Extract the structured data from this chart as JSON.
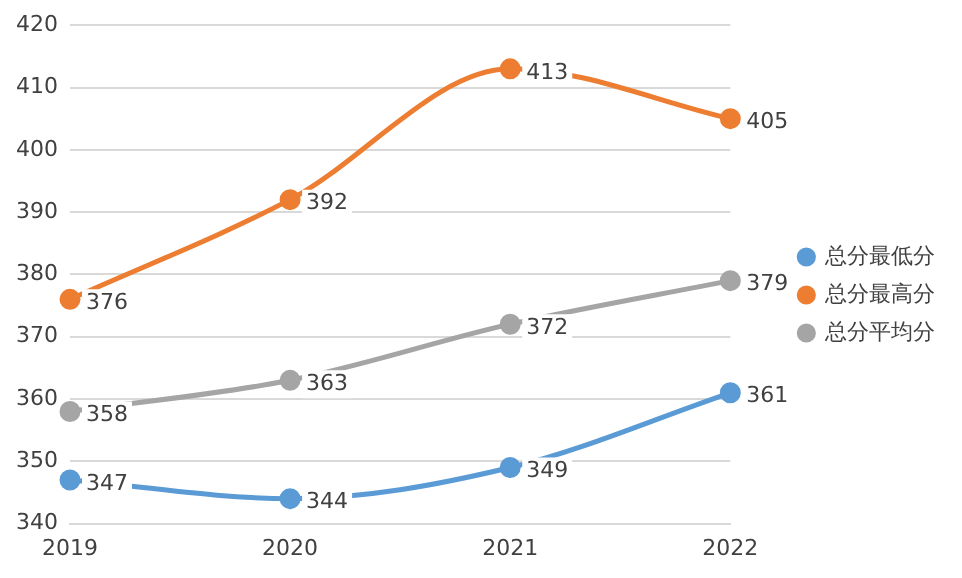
{
  "chart_data": {
    "type": "line",
    "categories": [
      "2019",
      "2020",
      "2021",
      "2022"
    ],
    "series": [
      {
        "name": "总分最低分",
        "color": "#5b9bd5",
        "values": [
          347,
          344,
          349,
          361
        ]
      },
      {
        "name": "总分最高分",
        "color": "#ed7d31",
        "values": [
          376,
          392,
          413,
          405
        ]
      },
      {
        "name": "总分平均分",
        "color": "#a5a5a5",
        "values": [
          358,
          363,
          372,
          379
        ]
      }
    ],
    "ylim": [
      340,
      420
    ],
    "yticks": [
      340,
      350,
      360,
      370,
      380,
      390,
      400,
      410,
      420
    ],
    "grid": "y",
    "legend": "right",
    "marker": "circle",
    "line_style": "solid",
    "data_labels": true
  }
}
